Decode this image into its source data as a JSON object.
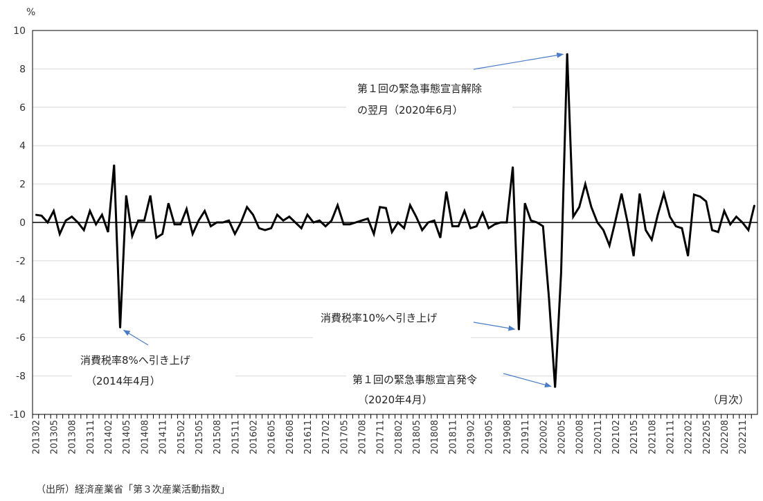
{
  "chart_data": {
    "type": "line",
    "y_unit_label": "%",
    "x_unit_label": "（月次）",
    "ylim": [
      -10,
      10
    ],
    "y_ticks": [
      10,
      8,
      6,
      4,
      2,
      0,
      -2,
      -4,
      -6,
      -8,
      -10
    ],
    "grid": true,
    "x_tick_labels": [
      "201302",
      "201305",
      "201308",
      "201311",
      "201402",
      "201405",
      "201408",
      "201411",
      "201502",
      "201505",
      "201508",
      "201511",
      "201602",
      "201605",
      "201608",
      "201611",
      "201702",
      "201705",
      "201708",
      "201711",
      "201802",
      "201805",
      "201808",
      "201811",
      "201902",
      "201905",
      "201908",
      "201911",
      "202002",
      "202005",
      "202008",
      "202011",
      "202102",
      "202105",
      "202108",
      "202111",
      "202202",
      "202205",
      "202208",
      "202211"
    ],
    "series": [
      {
        "values": [
          0.4,
          0.35,
          0.0,
          0.6,
          -0.6,
          0.1,
          0.3,
          0.0,
          -0.4,
          0.6,
          -0.1,
          0.4,
          -0.5,
          3.0,
          -5.5,
          1.4,
          -0.7,
          0.1,
          0.1,
          1.4,
          -0.8,
          -0.6,
          1.0,
          -0.1,
          -0.1,
          0.7,
          -0.6,
          0.1,
          0.6,
          -0.2,
          0.0,
          0.0,
          0.1,
          -0.6,
          0.0,
          0.8,
          0.4,
          -0.3,
          -0.4,
          -0.3,
          0.4,
          0.1,
          0.3,
          0.0,
          -0.3,
          0.4,
          0.0,
          0.1,
          -0.2,
          0.1,
          0.9,
          -0.1,
          -0.1,
          0.0,
          0.1,
          0.2,
          -0.6,
          0.8,
          0.75,
          -0.5,
          0.0,
          -0.3,
          0.9,
          0.3,
          -0.4,
          0.0,
          0.1,
          -0.8,
          1.6,
          -0.2,
          -0.2,
          0.6,
          -0.3,
          -0.2,
          0.5,
          -0.3,
          -0.1,
          0.0,
          0.0,
          2.9,
          -5.6,
          1.0,
          0.1,
          0.0,
          -0.2,
          -4.0,
          -8.6,
          -2.6,
          8.8,
          0.3,
          0.8,
          2.0,
          0.8,
          0.0,
          -0.4,
          -1.2,
          0.1,
          1.5,
          0.0,
          -1.75,
          1.5,
          -0.4,
          -0.9,
          0.4,
          1.5,
          0.3,
          -0.2,
          -0.3,
          -1.75,
          1.45,
          1.35,
          1.1,
          -0.4,
          -0.5,
          0.6,
          -0.1,
          0.3,
          0.0,
          -0.4,
          0.9
        ]
      }
    ],
    "annotations": [
      {
        "lines": [
          "消費税率8%へ引き上げ",
          "（2014年4月）"
        ],
        "target_index": 14
      },
      {
        "lines": [
          "消費税率10%へ引き上げ"
        ],
        "target_index": 80
      },
      {
        "lines": [
          "第１回の緊急事態宣言発令",
          "（2020年4月）"
        ],
        "target_index": 86
      },
      {
        "lines": [
          "第１回の緊急事態宣言解除",
          "の翌月（2020年6月）"
        ],
        "target_index": 88
      }
    ]
  },
  "source_note": "（出所）経済産業省「第３次産業活動指数」",
  "colors": {
    "line": "#000000",
    "arrow": "#4a7cc7",
    "grid": "#d9d9d9"
  }
}
